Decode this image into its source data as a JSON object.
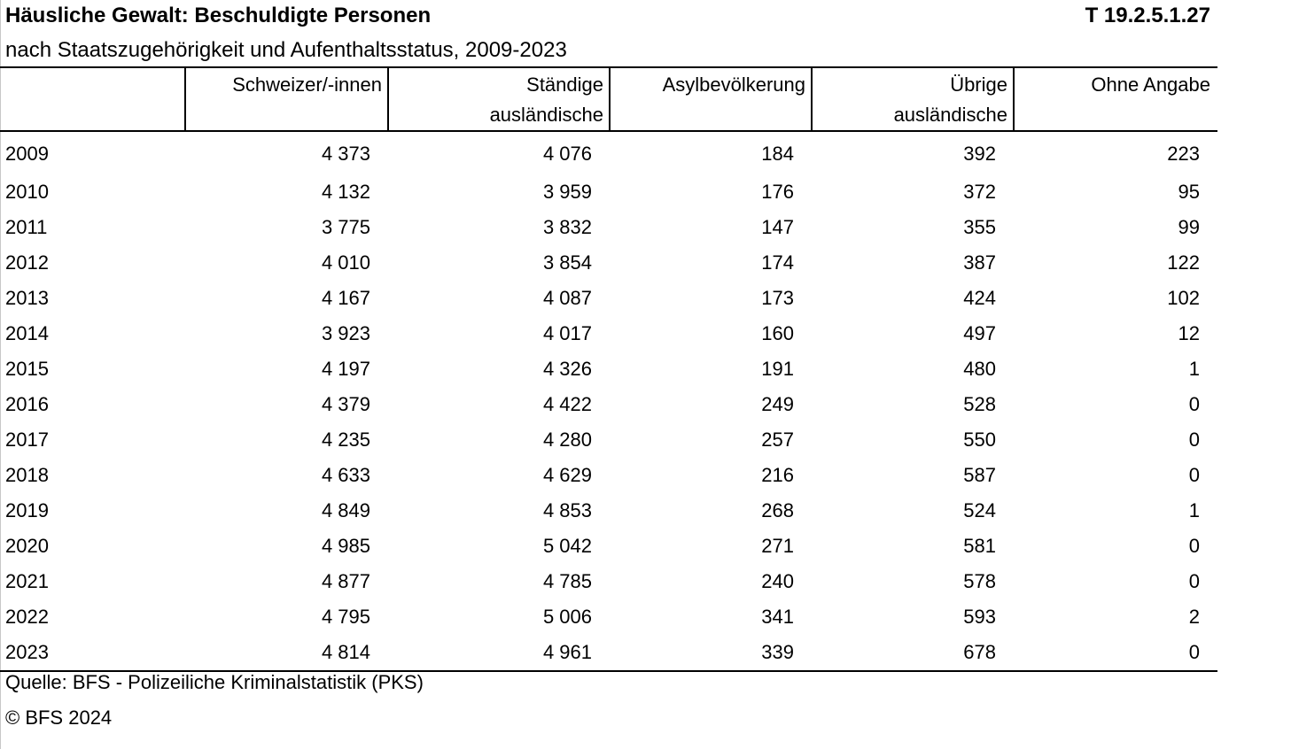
{
  "title": "Häusliche Gewalt: Beschuldigte Personen",
  "table_code": "T 19.2.5.1.27",
  "subtitle": "nach Staatszugehörigkeit und Aufenthaltsstatus, 2009-2023",
  "columns": [
    {
      "line1": "",
      "line2": ""
    },
    {
      "line1": "Schweizer/-innen",
      "line2": ""
    },
    {
      "line1": "Ständige",
      "line2": "ausländische"
    },
    {
      "line1": "Asylbevölkerung",
      "line2": ""
    },
    {
      "line1": "Übrige",
      "line2": "ausländische"
    },
    {
      "line1": "Ohne Angabe",
      "line2": ""
    }
  ],
  "rows": [
    [
      "2009",
      "4 373",
      "4 076",
      "184",
      "392",
      "223"
    ],
    [
      "2010",
      "4 132",
      "3 959",
      "176",
      "372",
      "95"
    ],
    [
      "2011",
      "3 775",
      "3 832",
      "147",
      "355",
      "99"
    ],
    [
      "2012",
      "4 010",
      "3 854",
      "174",
      "387",
      "122"
    ],
    [
      "2013",
      "4 167",
      "4 087",
      "173",
      "424",
      "102"
    ],
    [
      "2014",
      "3 923",
      "4 017",
      "160",
      "497",
      "12"
    ],
    [
      "2015",
      "4 197",
      "4 326",
      "191",
      "480",
      "1"
    ],
    [
      "2016",
      "4 379",
      "4 422",
      "249",
      "528",
      "0"
    ],
    [
      "2017",
      "4 235",
      "4 280",
      "257",
      "550",
      "0"
    ],
    [
      "2018",
      "4 633",
      "4 629",
      "216",
      "587",
      "0"
    ],
    [
      "2019",
      "4 849",
      "4 853",
      "268",
      "524",
      "1"
    ],
    [
      "2020",
      "4 985",
      "5 042",
      "271",
      "581",
      "0"
    ],
    [
      "2021",
      "4 877",
      "4 785",
      "240",
      "578",
      "0"
    ],
    [
      "2022",
      "4 795",
      "5 006",
      "341",
      "593",
      "2"
    ],
    [
      "2023",
      "4 814",
      "4 961",
      "339",
      "678",
      "0"
    ]
  ],
  "source": "Quelle: BFS - Polizeiliche Kriminalstatistik (PKS)",
  "copyright": "© BFS 2024"
}
